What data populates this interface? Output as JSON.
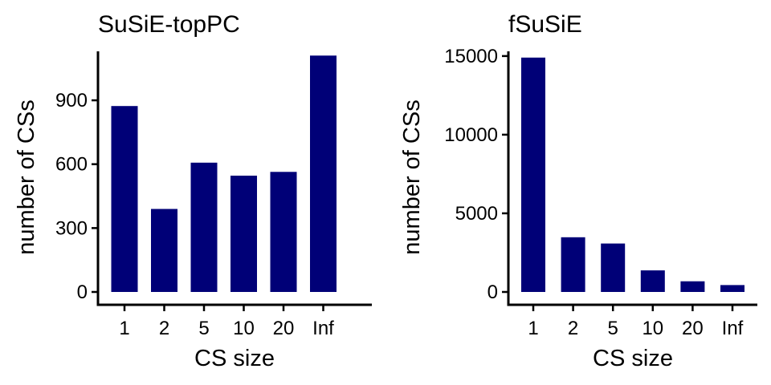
{
  "chart_data": [
    {
      "type": "bar",
      "title": "SuSiE-topPC",
      "xlabel": "CS size",
      "ylabel": "number of CSs",
      "categories": [
        "1",
        "2",
        "5",
        "10",
        "20",
        "Inf"
      ],
      "values": [
        873,
        390,
        607,
        546,
        564,
        1110
      ],
      "ylim": [
        0,
        1130
      ],
      "yticks": [
        0,
        300,
        600,
        900
      ],
      "bar_color": "#000077",
      "grid": false,
      "legend": "none"
    },
    {
      "type": "bar",
      "title": "fSuSiE",
      "xlabel": "CS size",
      "ylabel": "number of CSs",
      "categories": [
        "1",
        "2",
        "5",
        "10",
        "20",
        "Inf"
      ],
      "values": [
        14900,
        3480,
        3080,
        1370,
        680,
        440
      ],
      "ylim": [
        0,
        15300
      ],
      "yticks": [
        0,
        5000,
        10000,
        15000
      ],
      "bar_color": "#000077",
      "grid": false,
      "legend": "none"
    }
  ]
}
